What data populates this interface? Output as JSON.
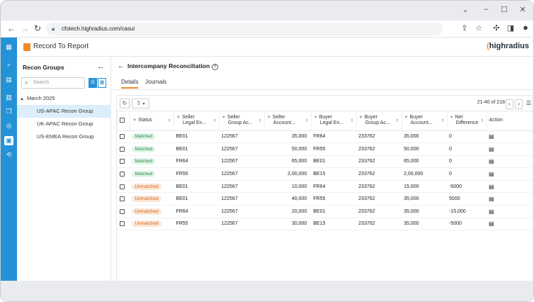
{
  "browser": {
    "url": "cfotech.highradius.com/casui",
    "window_controls": [
      "chevron-down",
      "minimize",
      "maximize",
      "close"
    ],
    "nav_icons": [
      "back-arrow",
      "forward-arrow",
      "reload"
    ],
    "toolbar_icons": [
      "share",
      "star",
      "extensions",
      "sidebar",
      "profile"
    ]
  },
  "rail": {
    "icons": [
      "grid",
      "search",
      "report",
      "notebook",
      "copy",
      "target",
      "building",
      "refresh"
    ],
    "active_index": 6,
    "color": "#2492d6"
  },
  "header": {
    "app_name": "Record To Report",
    "logo_prefix": "(",
    "logo_text": "highradius",
    "accent_color": "#f08a24"
  },
  "left_panel": {
    "title": "Recon Groups",
    "search_placeholder": "Search",
    "tree_root": "March 2025",
    "groups": [
      {
        "label": "US-APAC Recon Group",
        "selected": true
      },
      {
        "label": "UK-APAC Recon Group",
        "selected": false
      },
      {
        "label": "US-EMEA Recon Group",
        "selected": false
      }
    ]
  },
  "page": {
    "title": "Intercompany Reconciliation",
    "help_glyph": "?",
    "tabs": [
      {
        "label": "Details",
        "active": true
      },
      {
        "label": "Journals",
        "active": false
      }
    ]
  },
  "grid": {
    "pager_text": "21-40 of 218",
    "columns": [
      {
        "label": "",
        "sub": ""
      },
      {
        "label": "Status",
        "sub": ""
      },
      {
        "label": "Seller",
        "sub": "Legal En..."
      },
      {
        "label": "Seller",
        "sub": "Group Ac..."
      },
      {
        "label": "Seller",
        "sub": "Account..."
      },
      {
        "label": "Buyer",
        "sub": "Legal En..."
      },
      {
        "label": "Buyer",
        "sub": "Group Ac..."
      },
      {
        "label": "Buyer",
        "sub": "Account..."
      },
      {
        "label": "Net",
        "sub": "Difference"
      },
      {
        "label": "Action",
        "sub": ""
      }
    ],
    "rows": [
      {
        "status": "Matched",
        "seller_le": "BE01",
        "seller_ga": "122567",
        "seller_amt": "35,000",
        "buyer_le": "FR64",
        "buyer_ga": "233762",
        "buyer_amt": "35,000",
        "net": "0"
      },
      {
        "status": "Matched",
        "seller_le": "BE01",
        "seller_ga": "122567",
        "seller_amt": "50,000",
        "buyer_le": "FR55",
        "buyer_ga": "233762",
        "buyer_amt": "50,000",
        "net": "0"
      },
      {
        "status": "Matched",
        "seller_le": "FR64",
        "seller_ga": "122567",
        "seller_amt": "65,000",
        "buyer_le": "BE01",
        "buyer_ga": "233762",
        "buyer_amt": "65,000",
        "net": "0"
      },
      {
        "status": "Matched",
        "seller_le": "FR55",
        "seller_ga": "122567",
        "seller_amt": "2,00,000",
        "buyer_le": "BE15",
        "buyer_ga": "233762",
        "buyer_amt": "2,00,000",
        "net": "0"
      },
      {
        "status": "Unmatched",
        "seller_le": "BE01",
        "seller_ga": "122567",
        "seller_amt": "10,000",
        "buyer_le": "FR64",
        "buyer_ga": "233762",
        "buyer_amt": "15,000",
        "net": "-5000"
      },
      {
        "status": "Unmatched",
        "seller_le": "BE01",
        "seller_ga": "122567",
        "seller_amt": "40,000",
        "buyer_le": "FR55",
        "buyer_ga": "233762",
        "buyer_amt": "35,000",
        "net": "5000"
      },
      {
        "status": "Unmatched",
        "seller_le": "FR64",
        "seller_ga": "122567",
        "seller_amt": "20,000",
        "buyer_le": "BE01",
        "buyer_ga": "233762",
        "buyer_amt": "35,000",
        "net": "-15,000"
      },
      {
        "status": "Unmatched",
        "seller_le": "FR55",
        "seller_ga": "122567",
        "seller_amt": "30,000",
        "buyer_le": "BE15",
        "buyer_ga": "233762",
        "buyer_amt": "35,000",
        "net": "-5000"
      }
    ],
    "status_colors": {
      "Matched": {
        "bg": "#dff5e5",
        "fg": "#2e8b4e"
      },
      "Unmatched": {
        "bg": "#fde6d6",
        "fg": "#d2691e"
      }
    }
  }
}
